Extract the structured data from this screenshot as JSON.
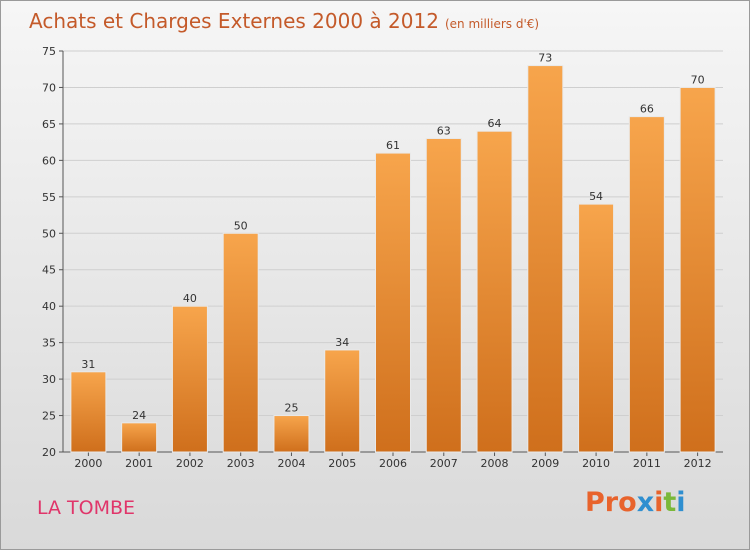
{
  "chart_data": {
    "type": "bar",
    "title": "Achats et Charges Externes 2000 à 2012",
    "subtitle": "(en milliers d'€)",
    "categories": [
      "2000",
      "2001",
      "2002",
      "2003",
      "2004",
      "2005",
      "2006",
      "2007",
      "2008",
      "2009",
      "2010",
      "2011",
      "2012"
    ],
    "values": [
      31,
      24,
      40,
      50,
      25,
      34,
      61,
      63,
      64,
      73,
      54,
      66,
      70
    ],
    "ylim": [
      20,
      75
    ],
    "yticks": [
      20,
      25,
      30,
      35,
      40,
      45,
      50,
      55,
      60,
      65,
      70,
      75
    ],
    "xlabel": "",
    "ylabel": "",
    "grid": true,
    "bar_color": "#f39a3c"
  },
  "footer": {
    "place": "LA TOMBE",
    "brand": "Proxiti",
    "brand_colors": [
      "#e8632c",
      "#e8632c",
      "#e8632c",
      "#2f8fd0",
      "#e8632c",
      "#7ab83a",
      "#2f8fd0"
    ]
  }
}
